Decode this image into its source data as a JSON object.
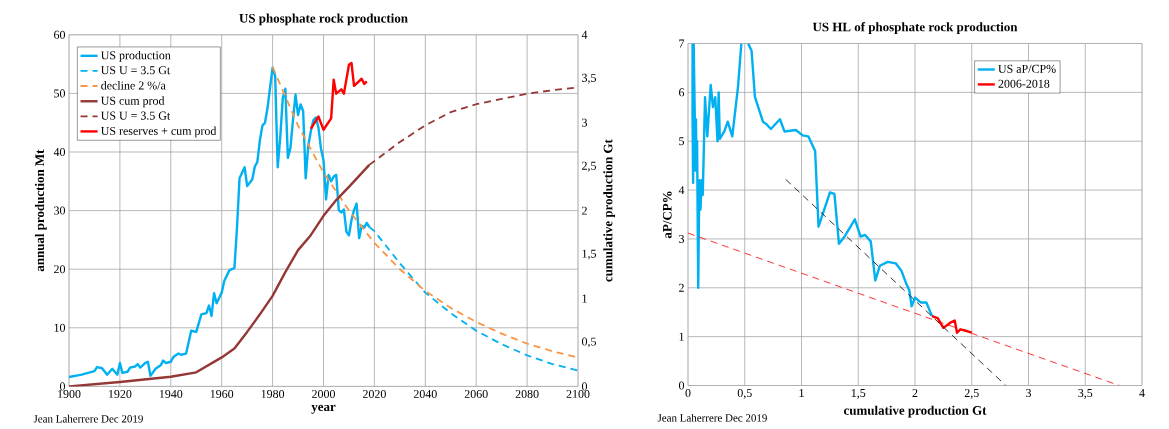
{
  "chart_data": [
    {
      "type": "line",
      "title": "US phosphate rock production",
      "xlabel": "year",
      "ylabel": "annual production Mt",
      "y2label": "cumulative production Gt",
      "xlim": [
        1900,
        2100
      ],
      "xticks": [
        1900,
        1920,
        1940,
        1960,
        1980,
        2000,
        2020,
        2040,
        2060,
        2080,
        2100
      ],
      "ylim": [
        0,
        60
      ],
      "yticks": [
        0,
        10,
        20,
        30,
        40,
        50,
        60
      ],
      "y2lim": [
        0,
        4
      ],
      "y2ticks": [
        0,
        {
          "value": 0.5,
          "label": "0,5"
        },
        1,
        {
          "value": 1.5,
          "label": "1,5"
        },
        2,
        {
          "value": 2.5,
          "label": "2,5"
        },
        3,
        {
          "value": 3.5,
          "label": "3,5"
        },
        4
      ],
      "grid": true,
      "legend": "top left",
      "annotations": [
        "Jean Laherrere Dec 2019"
      ],
      "series": [
        {
          "name": "US production",
          "color": "#00b0f0",
          "line_style": "solid",
          "x": [
            1900,
            1905,
            1910,
            1911,
            1913,
            1915,
            1917,
            1919,
            1920,
            1921,
            1923,
            1924,
            1926,
            1927,
            1928,
            1930,
            1931,
            1932,
            1934,
            1936,
            1937,
            1938,
            1940,
            1941,
            1943,
            1944,
            1946,
            1947,
            1948,
            1950,
            1952,
            1954,
            1955,
            1956,
            1957,
            1958,
            1960,
            1961,
            1963,
            1964,
            1965,
            1966,
            1967,
            1969,
            1970,
            1972,
            1973,
            1974,
            1975,
            1976,
            1977,
            1978,
            1979,
            1980,
            1981,
            1982,
            1983,
            1984,
            1985,
            1986,
            1987,
            1988,
            1989,
            1990,
            1991,
            1992,
            1993,
            1994,
            1995,
            1996,
            1997,
            1998,
            1999,
            2000,
            2001,
            2002,
            2003,
            2004,
            2005,
            2006,
            2007,
            2008,
            2009,
            2010,
            2011,
            2012,
            2013,
            2014,
            2015,
            2016,
            2017,
            2018
          ],
          "values": [
            1.6,
            2.0,
            2.6,
            3.3,
            3.1,
            2.0,
            3.0,
            2.0,
            4.0,
            2.3,
            2.5,
            3.2,
            3.4,
            3.8,
            3.2,
            4.0,
            4.2,
            1.8,
            3.0,
            3.6,
            4.4,
            4.0,
            4.2,
            5.0,
            5.6,
            5.4,
            5.6,
            7.5,
            9.5,
            9.3,
            12.3,
            12.5,
            13.8,
            12.0,
            15.9,
            14.2,
            16.0,
            18.0,
            19.8,
            20.0,
            20.2,
            27.0,
            35.5,
            37.4,
            34.2,
            35.3,
            37.5,
            38.3,
            42.0,
            44.5,
            45.0,
            47.5,
            51.0,
            54.4,
            53.0,
            37.4,
            42.5,
            49.2,
            50.8,
            39.0,
            40.7,
            45.4,
            49.8,
            46.3,
            48.1,
            47.0,
            35.5,
            41.0,
            43.5,
            45.4,
            45.9,
            44.2,
            40.6,
            38.6,
            31.9,
            36.1,
            35.0,
            35.8,
            36.1,
            30.1,
            29.7,
            30.2,
            26.4,
            25.8,
            28.4,
            30.1,
            31.2,
            25.3,
            27.4,
            27.1,
            27.9,
            27.2
          ]
        },
        {
          "name": "US U = 3.5 Gt",
          "color": "#00b0f0",
          "line_style": "dashed",
          "x": [
            2018,
            2020,
            2030,
            2040,
            2050,
            2060,
            2070,
            2080,
            2090,
            2100
          ],
          "values": [
            27.2,
            26.5,
            21,
            16,
            12.5,
            9.5,
            7.2,
            5.3,
            3.8,
            2.7
          ]
        },
        {
          "name": "decline 2 %/a",
          "color": "#f79646",
          "line_style": "dashed",
          "x": [
            1980,
            1990,
            2000,
            2010,
            2020,
            2030,
            2040,
            2050,
            2060,
            2070,
            2080,
            2090,
            2100
          ],
          "values": [
            54.5,
            44.5,
            36.5,
            30,
            24.5,
            20,
            16.3,
            13.4,
            11,
            9,
            7.3,
            6,
            4.9
          ]
        },
        {
          "name": "US cum prod",
          "color": "#953735",
          "line_style": "solid",
          "axis": "y2",
          "x": [
            1900,
            1920,
            1940,
            1950,
            1960,
            1965,
            1970,
            1975,
            1980,
            1985,
            1990,
            1995,
            2000,
            2005,
            2010,
            2018
          ],
          "values": [
            0,
            0.05,
            0.11,
            0.16,
            0.33,
            0.43,
            0.62,
            0.82,
            1.03,
            1.3,
            1.55,
            1.72,
            1.94,
            2.12,
            2.27,
            2.52
          ]
        },
        {
          "name": "US U = 3.5 Gt",
          "color": "#953735",
          "line_style": "dashed",
          "axis": "y2",
          "x": [
            2018,
            2030,
            2040,
            2050,
            2060,
            2070,
            2080,
            2090,
            2100
          ],
          "values": [
            2.52,
            2.78,
            2.97,
            3.12,
            3.21,
            3.27,
            3.33,
            3.37,
            3.4
          ]
        },
        {
          "name": "US reserves + cum prod",
          "color": "#ff0000",
          "line_style": "solid",
          "axis": "y2",
          "x": [
            1995,
            1998,
            2000,
            2003,
            2004,
            2005,
            2007,
            2008,
            2010,
            2011,
            2012,
            2015,
            2016,
            2017
          ],
          "values": [
            2.93,
            3.07,
            2.92,
            3.05,
            3.49,
            3.33,
            3.38,
            3.33,
            3.66,
            3.68,
            3.42,
            3.5,
            3.44,
            3.47
          ]
        }
      ]
    },
    {
      "type": "line",
      "title": "US HL of phosphate rock production",
      "xlabel": "cumulative production Gt",
      "ylabel": "aP/CP%",
      "xlim": [
        0,
        4
      ],
      "xticks": [
        0,
        {
          "value": 0.5,
          "label": "0,5"
        },
        1,
        {
          "value": 1.5,
          "label": "1,5"
        },
        2,
        {
          "value": 2.5,
          "label": "2,5"
        },
        3,
        {
          "value": 3.5,
          "label": "3,5"
        },
        4
      ],
      "ylim": [
        0,
        7
      ],
      "yticks": [
        0,
        1,
        2,
        3,
        4,
        5,
        6,
        7
      ],
      "grid": true,
      "legend": "top right",
      "annotations": [
        "Jean Laherrere Dec 2019"
      ],
      "series": [
        {
          "name": "US aP/CP%",
          "color": "#00b0f0",
          "line_style": "solid",
          "x": [
            0.04,
            0.04,
            0.045,
            0.05,
            0.06,
            0.065,
            0.07,
            0.075,
            0.08,
            0.09,
            0.1,
            0.11,
            0.12,
            0.13,
            0.15,
            0.17,
            0.2,
            0.22,
            0.24,
            0.26,
            0.27,
            0.28,
            0.32,
            0.35,
            0.39,
            0.44,
            0.47,
            0.5,
            0.53,
            0.56,
            0.59,
            0.66,
            0.69,
            0.73,
            0.81,
            0.85,
            0.95,
            1.01,
            1.06,
            1.12,
            1.15,
            1.25,
            1.29,
            1.33,
            1.38,
            1.47,
            1.52,
            1.56,
            1.61,
            1.65,
            1.69,
            1.76,
            1.83,
            1.88,
            1.92,
            1.95,
            1.97,
            2.0,
            2.05,
            2.1,
            2.15
          ],
          "values": [
            7.0,
            5.5,
            4.15,
            7.0,
            5.45,
            4.4,
            5.45,
            4.4,
            5.0,
            2.0,
            4.2,
            3.6,
            4.2,
            3.9,
            5.9,
            5.1,
            6.15,
            5.7,
            5.9,
            5.0,
            6.0,
            5.05,
            5.2,
            5.4,
            5.1,
            6.1,
            7.0,
            null,
            7.0,
            6.85,
            5.9,
            5.4,
            5.35,
            5.25,
            5.45,
            5.2,
            5.23,
            5.12,
            5.1,
            4.8,
            3.25,
            3.95,
            3.92,
            2.9,
            3.05,
            3.4,
            3.05,
            3.08,
            2.95,
            2.15,
            2.45,
            2.53,
            2.5,
            2.35,
            2.1,
            1.95,
            1.62,
            1.8,
            1.7,
            1.7,
            1.42
          ]
        },
        {
          "name": "2006-2018",
          "color": "#ff0000",
          "line_style": "solid",
          "x": [
            2.15,
            2.2,
            2.25,
            2.32,
            2.35,
            2.37,
            2.4,
            2.45,
            2.5
          ],
          "values": [
            1.42,
            1.38,
            1.18,
            1.3,
            1.33,
            1.08,
            1.15,
            1.12,
            1.08
          ]
        },
        {
          "color": "#000000",
          "line_style": "dashed",
          "x": [
            0.86,
            2.8
          ],
          "values": [
            4.22,
            0
          ]
        },
        {
          "color": "#ff0000",
          "line_style": "dashed",
          "x": [
            0,
            3.8
          ],
          "values": [
            3.12,
            0
          ]
        }
      ]
    }
  ]
}
